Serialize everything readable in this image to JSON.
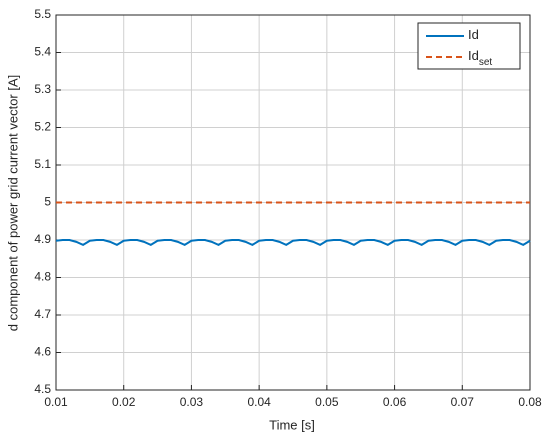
{
  "chart_data": {
    "type": "line",
    "xlabel": "Time [s]",
    "ylabel": "d component of power grid current vector [A]",
    "x": [
      0.01,
      0.011,
      0.012,
      0.013,
      0.014,
      0.015,
      0.016,
      0.017,
      0.018,
      0.019,
      0.02,
      0.021,
      0.022,
      0.023,
      0.024,
      0.025,
      0.026,
      0.027,
      0.028,
      0.029,
      0.03,
      0.031,
      0.032,
      0.033,
      0.034,
      0.035,
      0.036,
      0.037,
      0.038,
      0.039,
      0.04,
      0.041,
      0.042,
      0.043,
      0.044,
      0.045,
      0.046,
      0.047,
      0.048,
      0.049,
      0.05,
      0.051,
      0.052,
      0.053,
      0.054,
      0.055,
      0.056,
      0.057,
      0.058,
      0.059,
      0.06,
      0.061,
      0.062,
      0.063,
      0.064,
      0.065,
      0.066,
      0.067,
      0.068,
      0.069,
      0.07,
      0.071,
      0.072,
      0.073,
      0.074,
      0.075,
      0.076,
      0.077,
      0.078,
      0.079,
      0.08
    ],
    "series": [
      {
        "name": "Id",
        "color": "#0072bd",
        "dash": false,
        "values": [
          4.898,
          4.9,
          4.9,
          4.895,
          4.887,
          4.898,
          4.9,
          4.9,
          4.895,
          4.887,
          4.898,
          4.9,
          4.9,
          4.895,
          4.887,
          4.898,
          4.9,
          4.9,
          4.895,
          4.887,
          4.898,
          4.9,
          4.9,
          4.895,
          4.887,
          4.898,
          4.9,
          4.9,
          4.895,
          4.887,
          4.898,
          4.9,
          4.9,
          4.895,
          4.887,
          4.898,
          4.9,
          4.9,
          4.895,
          4.887,
          4.898,
          4.9,
          4.9,
          4.895,
          4.887,
          4.898,
          4.9,
          4.9,
          4.895,
          4.887,
          4.898,
          4.9,
          4.9,
          4.895,
          4.887,
          4.898,
          4.9,
          4.9,
          4.895,
          4.887,
          4.898,
          4.9,
          4.9,
          4.895,
          4.887,
          4.898,
          4.9,
          4.9,
          4.895,
          4.887,
          4.898
        ]
      },
      {
        "name": "Id",
        "subscript": "set",
        "color": "#d95319",
        "dash": true,
        "values": [
          5,
          5,
          5,
          5,
          5,
          5,
          5,
          5,
          5,
          5,
          5,
          5,
          5,
          5,
          5,
          5,
          5,
          5,
          5,
          5,
          5,
          5,
          5,
          5,
          5,
          5,
          5,
          5,
          5,
          5,
          5,
          5,
          5,
          5,
          5,
          5,
          5,
          5,
          5,
          5,
          5,
          5,
          5,
          5,
          5,
          5,
          5,
          5,
          5,
          5,
          5,
          5,
          5,
          5,
          5,
          5,
          5,
          5,
          5,
          5,
          5,
          5,
          5,
          5,
          5,
          5,
          5,
          5,
          5,
          5,
          5
        ]
      }
    ],
    "xlim": [
      0.01,
      0.08
    ],
    "xticks": [
      0.01,
      0.02,
      0.03,
      0.04,
      0.05,
      0.06,
      0.07,
      0.08
    ],
    "ylim": [
      4.5,
      5.5
    ],
    "yticks": [
      4.5,
      4.6,
      4.7,
      4.8,
      4.9,
      5,
      5.1,
      5.2,
      5.3,
      5.4,
      5.5
    ],
    "grid": true,
    "legend": "northeast"
  }
}
